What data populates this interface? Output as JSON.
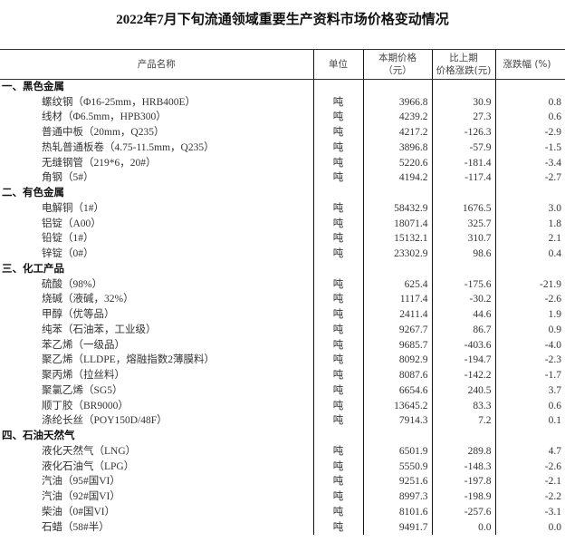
{
  "title": "2022年7月下旬流通领域重要生产资料市场价格变动情况",
  "headers": {
    "name": "产品名称",
    "unit": "单位",
    "price_line1": "本期价格",
    "price_line2": "（元）",
    "change_line1": "比上期",
    "change_line2": "价格涨跌(元)",
    "pct": "涨跌幅 (%)"
  },
  "rows": [
    {
      "type": "cat",
      "name": "一、黑色金属"
    },
    {
      "type": "item",
      "name": "螺纹钢（Φ16-25mm，HRB400E）",
      "unit": "吨",
      "price": "3966.8",
      "change": "30.9",
      "pct": "0.8"
    },
    {
      "type": "item",
      "name": "线材（Φ6.5mm，HPB300）",
      "unit": "吨",
      "price": "4239.2",
      "change": "27.3",
      "pct": "0.6"
    },
    {
      "type": "item",
      "name": "普通中板（20mm，Q235）",
      "unit": "吨",
      "price": "4217.2",
      "change": "-126.3",
      "pct": "-2.9"
    },
    {
      "type": "item",
      "name": "热轧普通板卷（4.75-11.5mm，Q235）",
      "unit": "吨",
      "price": "3896.8",
      "change": "-57.9",
      "pct": "-1.5"
    },
    {
      "type": "item",
      "name": "无缝钢管（219*6，20#）",
      "unit": "吨",
      "price": "5220.6",
      "change": "-181.4",
      "pct": "-3.4"
    },
    {
      "type": "item",
      "name": "角钢（5#）",
      "unit": "吨",
      "price": "4194.2",
      "change": "-117.4",
      "pct": "-2.7"
    },
    {
      "type": "cat",
      "name": "二、有色金属"
    },
    {
      "type": "item",
      "name": "电解铜（1#）",
      "unit": "吨",
      "price": "58432.9",
      "change": "1676.5",
      "pct": "3.0"
    },
    {
      "type": "item",
      "name": "铝锭（A00）",
      "unit": "吨",
      "price": "18071.4",
      "change": "325.7",
      "pct": "1.8"
    },
    {
      "type": "item",
      "name": "铅锭（1#）",
      "unit": "吨",
      "price": "15132.1",
      "change": "310.7",
      "pct": "2.1"
    },
    {
      "type": "item",
      "name": "锌锭（0#）",
      "unit": "吨",
      "price": "23302.9",
      "change": "98.6",
      "pct": "0.4"
    },
    {
      "type": "cat",
      "name": "三、化工产品"
    },
    {
      "type": "item",
      "name": "硫酸（98%）",
      "unit": "吨",
      "price": "625.4",
      "change": "-175.6",
      "pct": "-21.9"
    },
    {
      "type": "item",
      "name": "烧碱（液碱，32%）",
      "unit": "吨",
      "price": "1117.4",
      "change": "-30.2",
      "pct": "-2.6"
    },
    {
      "type": "item",
      "name": "甲醇（优等品）",
      "unit": "吨",
      "price": "2411.4",
      "change": "44.6",
      "pct": "1.9"
    },
    {
      "type": "item",
      "name": "纯苯（石油苯，工业级）",
      "unit": "吨",
      "price": "9267.7",
      "change": "86.7",
      "pct": "0.9"
    },
    {
      "type": "item",
      "name": "苯乙烯（一级品）",
      "unit": "吨",
      "price": "9685.7",
      "change": "-403.6",
      "pct": "-4.0"
    },
    {
      "type": "item",
      "name": "聚乙烯（LLDPE，熔融指数2薄膜料）",
      "unit": "吨",
      "price": "8092.9",
      "change": "-194.7",
      "pct": "-2.3"
    },
    {
      "type": "item",
      "name": "聚丙烯（拉丝料）",
      "unit": "吨",
      "price": "8087.6",
      "change": "-142.2",
      "pct": "-1.7"
    },
    {
      "type": "item",
      "name": "聚氯乙烯（SG5）",
      "unit": "吨",
      "price": "6654.6",
      "change": "240.5",
      "pct": "3.7"
    },
    {
      "type": "item",
      "name": "顺丁胶（BR9000）",
      "unit": "吨",
      "price": "13645.2",
      "change": "83.3",
      "pct": "0.6"
    },
    {
      "type": "item",
      "name": "涤纶长丝（POY150D/48F）",
      "unit": "吨",
      "price": "7914.3",
      "change": "7.2",
      "pct": "0.1"
    },
    {
      "type": "cat",
      "name": "四、石油天然气"
    },
    {
      "type": "item",
      "name": "液化天然气（LNG）",
      "unit": "吨",
      "price": "6501.9",
      "change": "289.8",
      "pct": "4.7"
    },
    {
      "type": "item",
      "name": "液化石油气（LPG）",
      "unit": "吨",
      "price": "5550.9",
      "change": "-148.3",
      "pct": "-2.6"
    },
    {
      "type": "item",
      "name": "汽油（95#国VI）",
      "unit": "吨",
      "price": "9251.6",
      "change": "-197.8",
      "pct": "-2.1"
    },
    {
      "type": "item",
      "name": "汽油（92#国VI）",
      "unit": "吨",
      "price": "8997.3",
      "change": "-198.9",
      "pct": "-2.2"
    },
    {
      "type": "item",
      "name": "柴油（0#国VI）",
      "unit": "吨",
      "price": "8101.6",
      "change": "-257.6",
      "pct": "-3.1"
    },
    {
      "type": "item",
      "name": "石蜡（58#半）",
      "unit": "吨",
      "price": "9491.7",
      "change": "0.0",
      "pct": "0.0"
    }
  ]
}
